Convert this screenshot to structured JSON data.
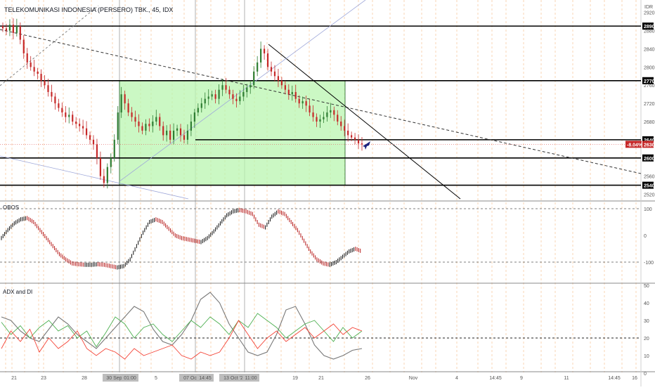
{
  "header": {
    "title": "TELEKOMUNIKASI INDONESIA (PERSERO) TBK., 45, IDX",
    "currency": "IDR"
  },
  "colors": {
    "up": "#26a69a",
    "down": "#ef5350",
    "dark_up": "#000000",
    "dark_down": "#b71c1c",
    "box_fill": "#b9f6b0",
    "box_stroke": "#1b5e20",
    "price_tag": "#c62828",
    "adx": "#787878",
    "di_plus": "#4caf50",
    "di_minus": "#f44336"
  },
  "chart_data": [
    {
      "type": "candlestick",
      "title": "TELEKOMUNIKASI INDONESIA (PERSERO) TBK., 45, IDX",
      "ylim": [
        2510,
        2935
      ],
      "y_ticks": [
        2520,
        2560,
        2600,
        2640,
        2680,
        2720,
        2760,
        2800,
        2840,
        2880,
        2920
      ],
      "horizontal_levels": [
        2890,
        2770,
        2640,
        2600,
        2540
      ],
      "last_price": 2630,
      "last_change_label": "-8.04%",
      "x_ticks": [
        "21",
        "23",
        "28",
        "30 Sep '20",
        "01:00",
        "5",
        "07 Oct '20",
        "14:45",
        "12",
        "13 Oct '20",
        "11:00",
        "19",
        "21",
        "26",
        "Nov",
        "4",
        "14:45",
        "9",
        "11",
        "14:45",
        "16"
      ],
      "annotations": [
        "rectangle 2770–2540",
        "descending trendlines",
        "rocket icon"
      ]
    },
    {
      "type": "line",
      "title": "OBOS",
      "ylim": [
        -120,
        120
      ],
      "y_ticks": [
        100,
        0,
        -100
      ],
      "reference_lines": [
        100,
        -100
      ],
      "series": [
        {
          "values": [
            -10,
            20,
            45,
            60,
            65,
            50,
            20,
            -10,
            -40,
            -70,
            -90,
            -105,
            -108,
            -110,
            -110,
            -108,
            -110,
            -115,
            -120,
            -115,
            -90,
            -40,
            10,
            50,
            60,
            50,
            25,
            0,
            -10,
            -15,
            -20,
            -25,
            -10,
            15,
            45,
            75,
            90,
            95,
            90,
            80,
            40,
            30,
            70,
            90,
            80,
            50,
            20,
            -20,
            -60,
            -90,
            -105,
            -110,
            -100,
            -80,
            -60,
            -50,
            -60
          ]
        }
      ]
    },
    {
      "type": "line",
      "title": "ADX and DI",
      "ylim": [
        0,
        50
      ],
      "y_ticks": [
        50,
        40,
        30,
        20,
        10,
        0
      ],
      "reference_lines": [
        20
      ],
      "series": [
        {
          "values": [
            32,
            30,
            24,
            20,
            18,
            25,
            32,
            28,
            22,
            18,
            14,
            20,
            26,
            32,
            38,
            35,
            25,
            18,
            16,
            22,
            30,
            42,
            46,
            40,
            28,
            20,
            12,
            10,
            12,
            22,
            36,
            38,
            28,
            16,
            10,
            8,
            10,
            13,
            14
          ]
        },
        {
          "values": [
            29,
            22,
            27,
            20,
            26,
            30,
            24,
            27,
            20,
            24,
            15,
            23,
            32,
            28,
            20,
            26,
            28,
            22,
            18,
            24,
            30,
            26,
            32,
            28,
            22,
            30,
            26,
            34,
            30,
            26,
            20,
            24,
            28,
            30,
            24,
            18,
            26,
            20,
            24
          ]
        },
        {
          "values": [
            14,
            24,
            18,
            25,
            12,
            20,
            14,
            18,
            24,
            14,
            10,
            14,
            12,
            8,
            14,
            10,
            12,
            14,
            16,
            10,
            8,
            12,
            10,
            12,
            20,
            30,
            22,
            14,
            20,
            24,
            18,
            22,
            26,
            20,
            24,
            28,
            22,
            26,
            24
          ]
        }
      ]
    }
  ]
}
